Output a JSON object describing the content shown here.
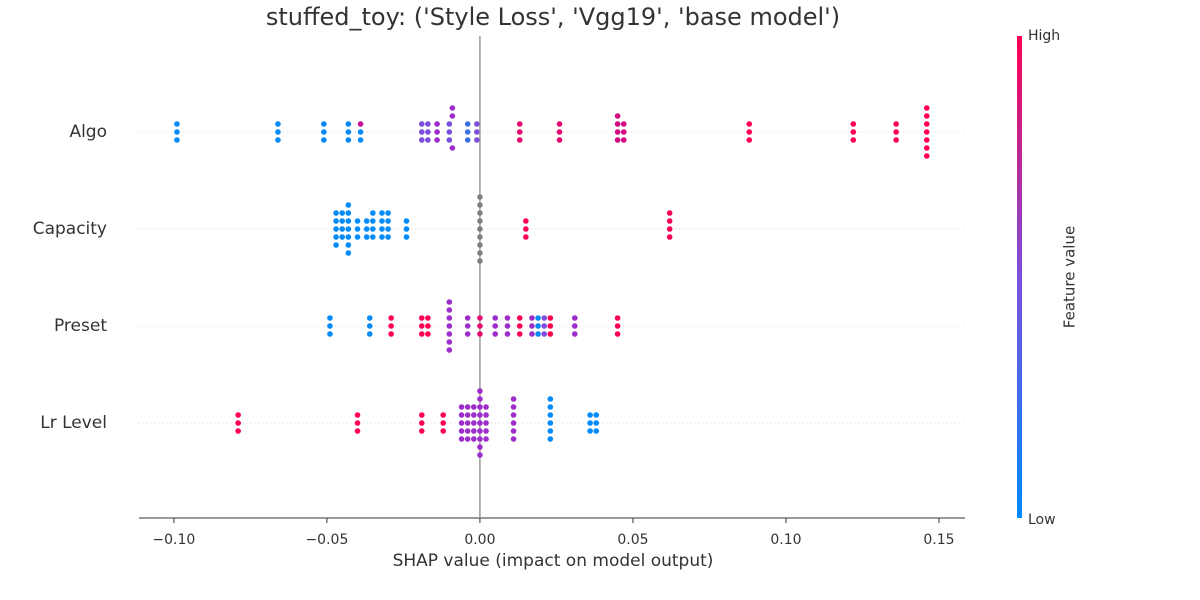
{
  "chart_data": {
    "type": "beeswarm",
    "title": "stuffed_toy: ('Style Loss', 'Vgg19', 'base model')",
    "x_label": "SHAP value (impact on model output)",
    "categories": [
      "Algo",
      "Capacity",
      "Preset",
      "Lr Level"
    ],
    "xlim": [
      -0.1114,
      0.1585
    ],
    "xticks": [
      {
        "value": -0.1,
        "label": "−0.10"
      },
      {
        "value": -0.05,
        "label": "−0.05"
      },
      {
        "value": 0,
        "label": "0.00"
      },
      {
        "value": 0.05,
        "label": "0.05"
      },
      {
        "value": 0.1,
        "label": "0.10"
      },
      {
        "value": 0.15,
        "label": "0.15"
      }
    ],
    "points": [
      {
        "values": [
          -0.099,
          -0.099,
          -0.099,
          -0.066,
          -0.066,
          -0.066,
          -0.051,
          -0.051,
          -0.051,
          -0.043,
          -0.043,
          -0.043,
          -0.039,
          -0.039,
          -0.039,
          -0.019,
          -0.019,
          -0.019,
          -0.017,
          -0.017,
          -0.017,
          -0.014,
          -0.014,
          -0.014,
          -0.01,
          -0.01,
          -0.01,
          -0.009,
          -0.009,
          -0.009,
          -0.004,
          -0.004,
          -0.004,
          -0.001,
          -0.001,
          -0.001,
          0.013,
          0.013,
          0.013,
          0.026,
          0.026,
          0.026,
          0.045,
          0.045,
          0.045,
          0.045,
          0.047,
          0.047,
          0.047,
          0.088,
          0.088,
          0.088,
          0.122,
          0.122,
          0.122,
          0.136,
          0.136,
          0.136,
          0.146,
          0.146,
          0.146,
          0.146,
          0.146,
          0.146,
          0.146
        ],
        "colors": [
          "#008bfb",
          "#008bfb",
          "#008bfb",
          "#008bfb",
          "#008bfb",
          "#008bfb",
          "#008bfb",
          "#008bfb",
          "#008bfb",
          "#008bfb",
          "#008bfb",
          "#008bfb",
          "#008bfb",
          "#c3109a",
          "#008bfb",
          "#7b4fdc",
          "#7b4fdc",
          "#7b4fdc",
          "#7b4fdc",
          "#7b4fdc",
          "#7b4fdc",
          "#9d2ccb",
          "#9d2ccb",
          "#9d2ccb",
          "#7b4fdc",
          "#7b4fdc",
          "#7b4fdc",
          "#9d2ccb",
          "#9d2ccb",
          "#9d2ccb",
          "#3d6fe8",
          "#3d6fe8",
          "#3d6fe8",
          "#7b4fdc",
          "#7b4fdc",
          "#7b4fdc",
          "#e6086e",
          "#e6086e",
          "#e6086e",
          "#e6086e",
          "#e6086e",
          "#e6086e",
          "#d8087f",
          "#d8087f",
          "#d8087f",
          "#d8087f",
          "#d8087f",
          "#d8087f",
          "#d8087f",
          "#ff0051",
          "#ff0051",
          "#ff0051",
          "#ff0051",
          "#ff0051",
          "#ff0051",
          "#ff0051",
          "#ff0051",
          "#ff0051",
          "#ff0051",
          "#ff0051",
          "#ff0051",
          "#ff0051",
          "#ff0051",
          "#ff0051",
          "#ff0051"
        ]
      },
      {
        "values": [
          -0.047,
          -0.047,
          -0.047,
          -0.047,
          -0.047,
          -0.045,
          -0.045,
          -0.045,
          -0.045,
          -0.043,
          -0.043,
          -0.043,
          -0.043,
          -0.043,
          -0.043,
          -0.043,
          -0.04,
          -0.04,
          -0.04,
          -0.037,
          -0.037,
          -0.037,
          -0.035,
          -0.035,
          -0.035,
          -0.035,
          -0.032,
          -0.032,
          -0.032,
          -0.032,
          -0.03,
          -0.03,
          -0.03,
          -0.03,
          -0.024,
          -0.024,
          -0.024,
          0,
          0,
          0,
          0,
          0,
          0,
          0,
          0,
          0,
          0.015,
          0.015,
          0.015,
          0.062,
          0.062,
          0.062,
          0.062
        ],
        "colors": [
          "#008bfb",
          "#008bfb",
          "#008bfb",
          "#008bfb",
          "#008bfb",
          "#008bfb",
          "#008bfb",
          "#008bfb",
          "#008bfb",
          "#008bfb",
          "#008bfb",
          "#008bfb",
          "#008bfb",
          "#008bfb",
          "#008bfb",
          "#008bfb",
          "#008bfb",
          "#008bfb",
          "#008bfb",
          "#008bfb",
          "#008bfb",
          "#008bfb",
          "#008bfb",
          "#008bfb",
          "#008bfb",
          "#008bfb",
          "#008bfb",
          "#008bfb",
          "#008bfb",
          "#008bfb",
          "#008bfb",
          "#008bfb",
          "#008bfb",
          "#008bfb",
          "#008bfb",
          "#008bfb",
          "#008bfb",
          "#808080",
          "#808080",
          "#808080",
          "#808080",
          "#808080",
          "#808080",
          "#808080",
          "#808080",
          "#808080",
          "#ff0051",
          "#ff0051",
          "#ff0051",
          "#ff0051",
          "#ff0051",
          "#ff0051",
          "#ff0051"
        ]
      },
      {
        "values": [
          -0.049,
          -0.049,
          -0.049,
          -0.036,
          -0.036,
          -0.036,
          -0.029,
          -0.029,
          -0.029,
          -0.019,
          -0.019,
          -0.019,
          -0.017,
          -0.017,
          -0.017,
          -0.01,
          -0.01,
          -0.01,
          -0.01,
          -0.01,
          -0.01,
          -0.01,
          -0.004,
          -0.004,
          -0.004,
          0,
          0,
          0,
          0.005,
          0.005,
          0.005,
          0.009,
          0.009,
          0.009,
          0.013,
          0.013,
          0.013,
          0.017,
          0.017,
          0.017,
          0.019,
          0.019,
          0.019,
          0.021,
          0.021,
          0.021,
          0.023,
          0.023,
          0.023,
          0.031,
          0.031,
          0.031,
          0.045,
          0.045,
          0.045
        ],
        "colors": [
          "#008bfb",
          "#008bfb",
          "#008bfb",
          "#008bfb",
          "#008bfb",
          "#008bfb",
          "#ff0051",
          "#ff0051",
          "#ff0051",
          "#ff0051",
          "#ff0051",
          "#ff0051",
          "#ff0051",
          "#ff0051",
          "#ff0051",
          "#9d2ccb",
          "#9d2ccb",
          "#9d2ccb",
          "#9d2ccb",
          "#9d2ccb",
          "#9d2ccb",
          "#9d2ccb",
          "#9d2ccb",
          "#9d2ccb",
          "#9d2ccb",
          "#e4106e",
          "#e4106e",
          "#e4106e",
          "#9d2ccb",
          "#9d2ccb",
          "#9d2ccb",
          "#9d2ccb",
          "#9d2ccb",
          "#9d2ccb",
          "#ff0051",
          "#ff0051",
          "#ff0051",
          "#9d2ccb",
          "#9d2ccb",
          "#9d2ccb",
          "#008bfb",
          "#008bfb",
          "#008bfb",
          "#7b4fdc",
          "#7b4fdc",
          "#7b4fdc",
          "#ff0051",
          "#ff0051",
          "#ff0051",
          "#9d2ccb",
          "#9d2ccb",
          "#9d2ccb",
          "#ff0051",
          "#ff0051",
          "#ff0051"
        ]
      },
      {
        "values": [
          -0.079,
          -0.079,
          -0.079,
          -0.04,
          -0.04,
          -0.04,
          -0.019,
          -0.019,
          -0.019,
          -0.012,
          -0.012,
          -0.012,
          -0.006,
          -0.006,
          -0.006,
          -0.006,
          -0.006,
          -0.004,
          -0.004,
          -0.004,
          -0.004,
          -0.004,
          -0.002,
          -0.002,
          -0.002,
          -0.002,
          -0.002,
          0,
          0,
          0,
          0,
          0,
          0,
          0,
          0,
          0,
          0.002,
          0.002,
          0.002,
          0.002,
          0.002,
          0.011,
          0.011,
          0.011,
          0.011,
          0.011,
          0.011,
          0.023,
          0.023,
          0.023,
          0.023,
          0.023,
          0.023,
          0.036,
          0.036,
          0.036,
          0.038,
          0.038,
          0.038
        ],
        "colors": [
          "#ff0051",
          "#ff0051",
          "#ff0051",
          "#ff0051",
          "#ff0051",
          "#ff0051",
          "#ff0051",
          "#ff0051",
          "#ff0051",
          "#ff0051",
          "#ff0051",
          "#ff0051",
          "#9d2ccb",
          "#9d2ccb",
          "#9d2ccb",
          "#9d2ccb",
          "#9d2ccb",
          "#9d2ccb",
          "#9d2ccb",
          "#9d2ccb",
          "#9d2ccb",
          "#9d2ccb",
          "#9d2ccb",
          "#9d2ccb",
          "#9d2ccb",
          "#9d2ccb",
          "#9d2ccb",
          "#9d2ccb",
          "#9d2ccb",
          "#9d2ccb",
          "#9d2ccb",
          "#9d2ccb",
          "#9d2ccb",
          "#9d2ccb",
          "#9d2ccb",
          "#9d2ccb",
          "#9d2ccb",
          "#9d2ccb",
          "#9d2ccb",
          "#9d2ccb",
          "#9d2ccb",
          "#9d2ccb",
          "#9d2ccb",
          "#9d2ccb",
          "#9d2ccb",
          "#9d2ccb",
          "#9d2ccb",
          "#008bfb",
          "#008bfb",
          "#008bfb",
          "#008bfb",
          "#008bfb",
          "#008bfb",
          "#008bfb",
          "#008bfb",
          "#008bfb",
          "#008bfb",
          "#008bfb",
          "#008bfb"
        ]
      }
    ],
    "colorbar": {
      "label": "Feature value",
      "high": "High",
      "low": "Low",
      "colors": [
        "#008bfb",
        "#7b4fdc",
        "#ff0051"
      ]
    }
  }
}
